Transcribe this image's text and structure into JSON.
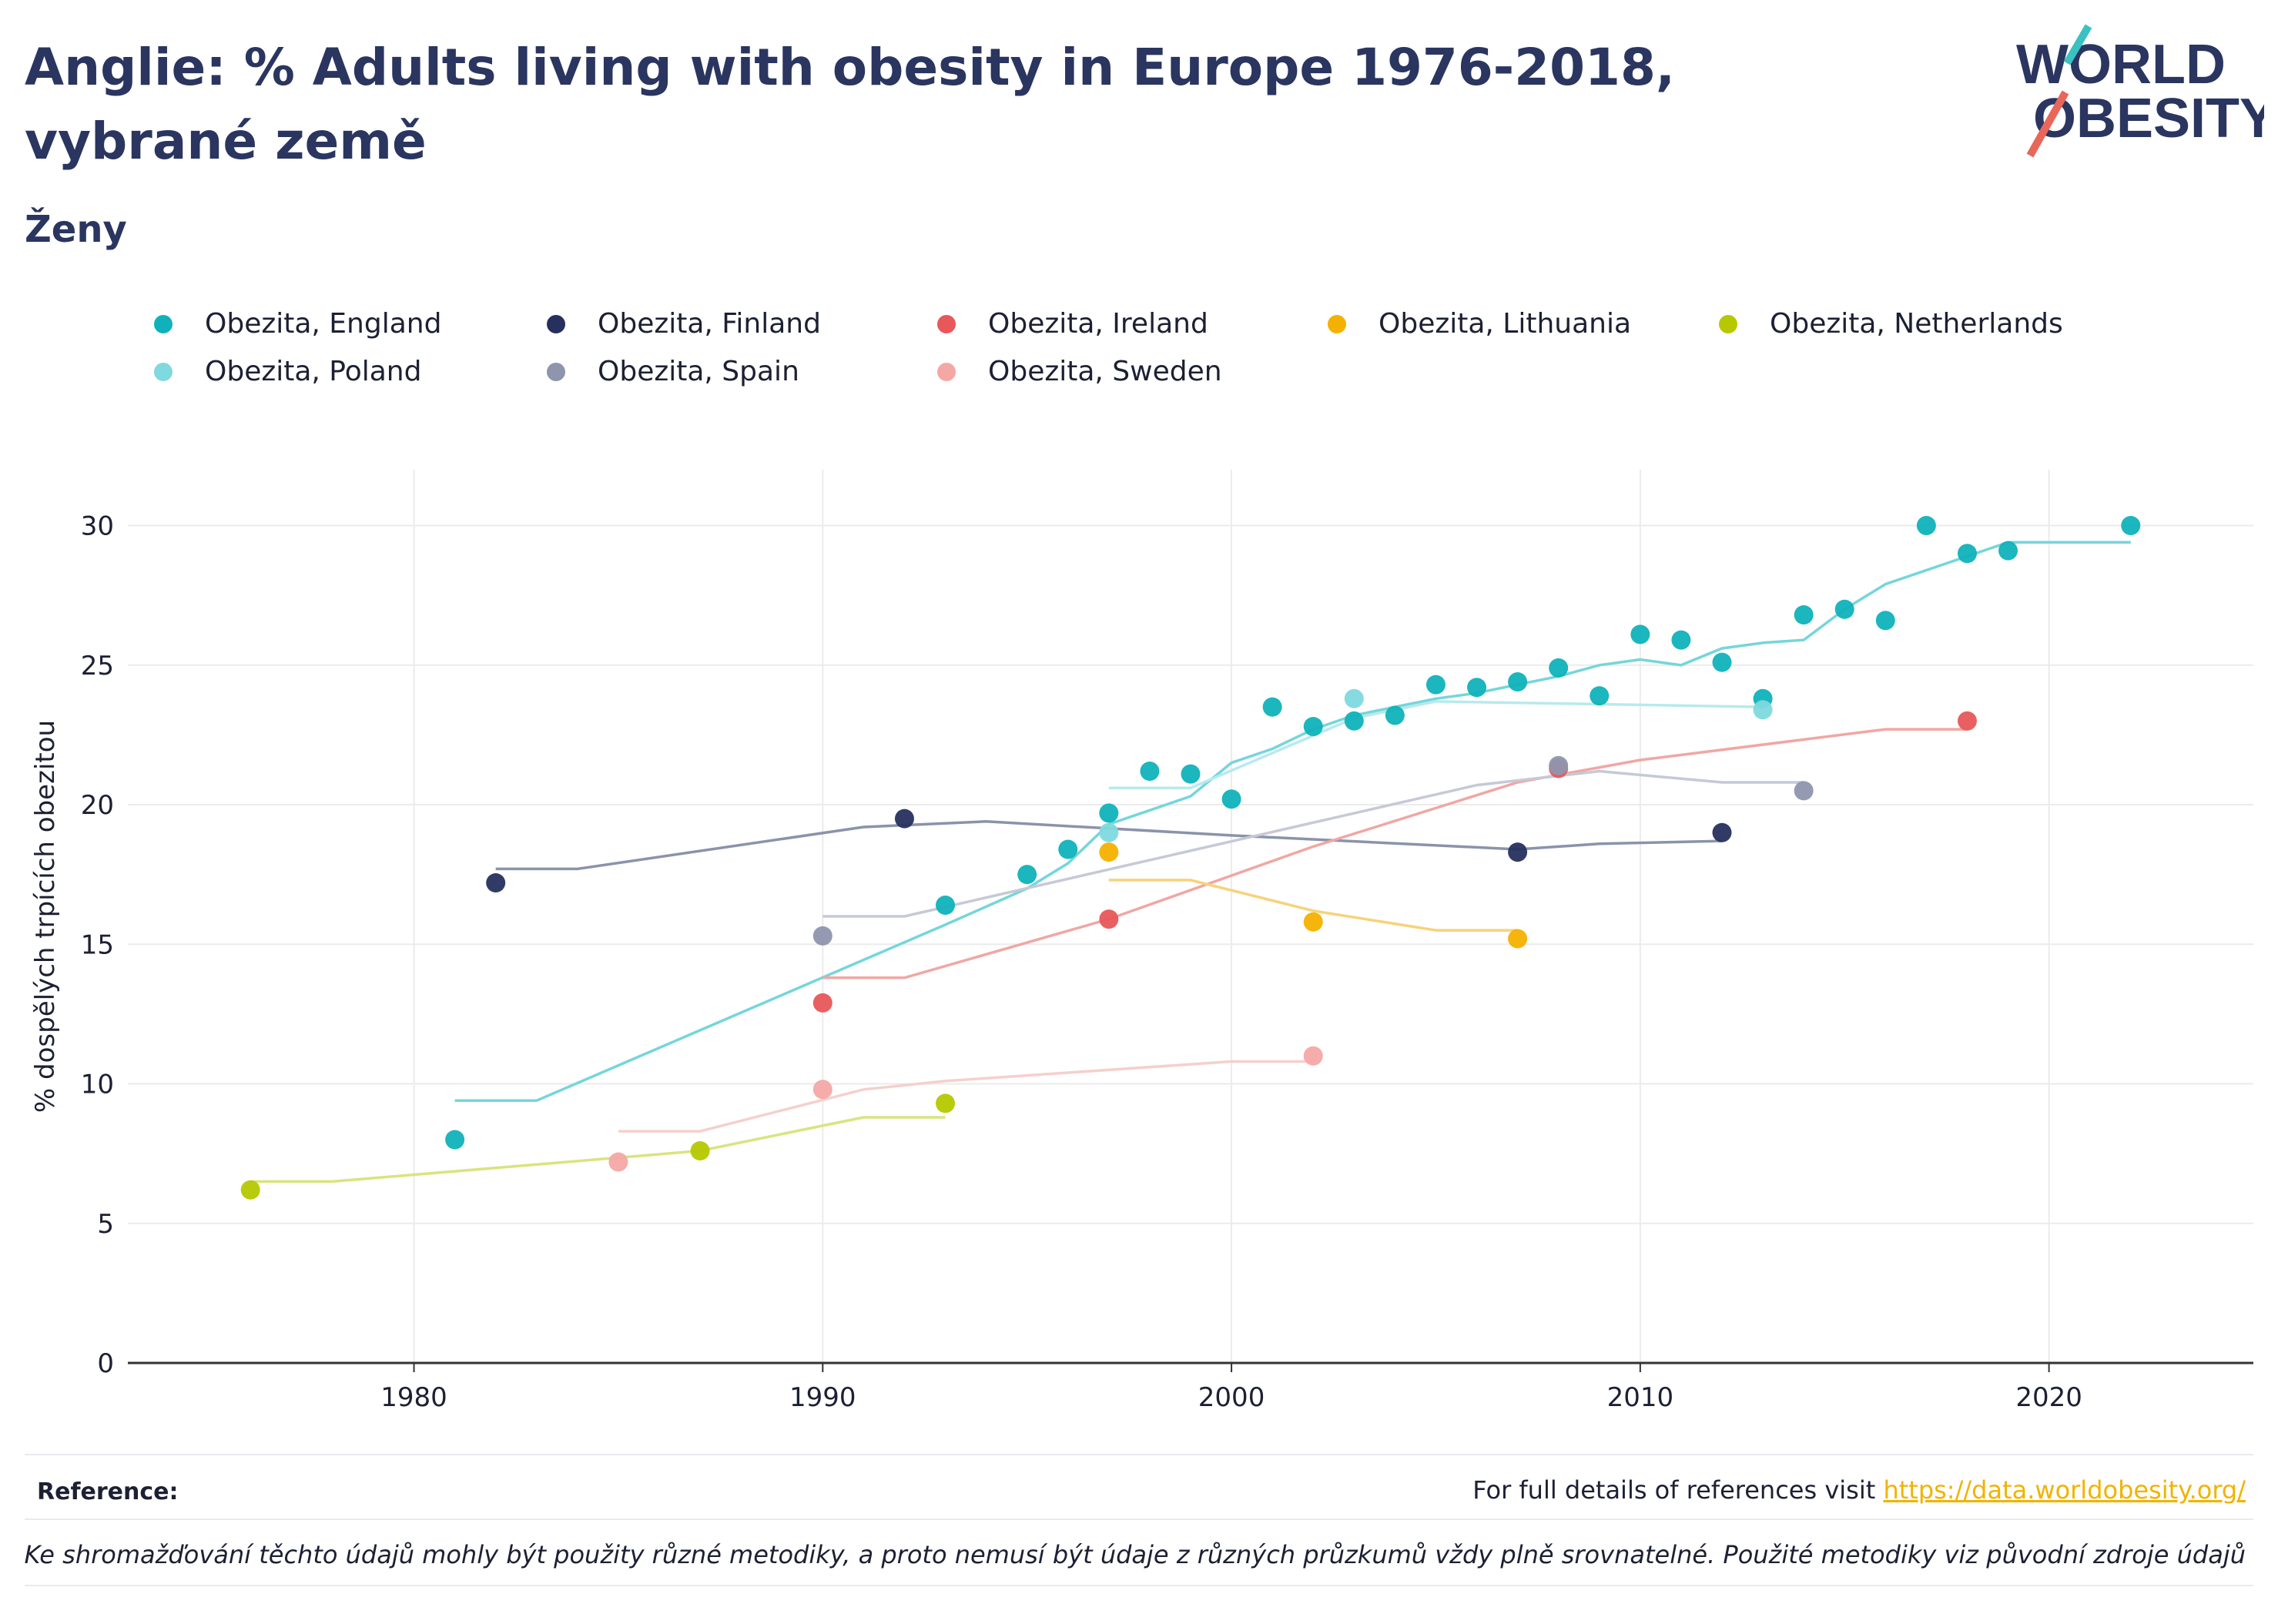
{
  "header": {
    "title": "Anglie: % Adults living with obesity in Europe 1976-2018, vybrané země",
    "subtitle": "Ženy"
  },
  "logo": {
    "line1": "WORLD",
    "line2": "OBESITY",
    "accent_teal": "#3cc1c1",
    "accent_red": "#e8675a"
  },
  "chart_data": {
    "type": "scatter",
    "title": "Anglie: % Adults living with obesity in Europe 1976-2018, vybrané země",
    "subtitle": "Ženy",
    "xlabel": "",
    "ylabel": "% dospělých trpících obezitou",
    "xlim": [
      1973,
      2025
    ],
    "ylim": [
      0,
      32
    ],
    "x_ticks": [
      1980,
      1990,
      2000,
      2010,
      2020
    ],
    "y_ticks": [
      0,
      5,
      10,
      15,
      20,
      25,
      30
    ],
    "grid": true,
    "legend_position": "top",
    "series": [
      {
        "name": "Obezita, England",
        "color": "#0fb2bb",
        "trend_color": "#74d6db",
        "points": [
          [
            1981,
            8.0
          ],
          [
            1993,
            16.4
          ],
          [
            1995,
            17.5
          ],
          [
            1996,
            18.4
          ],
          [
            1997,
            19.7
          ],
          [
            1998,
            21.2
          ],
          [
            1999,
            21.1
          ],
          [
            2000,
            20.2
          ],
          [
            2001,
            23.5
          ],
          [
            2002,
            22.8
          ],
          [
            2003,
            23.0
          ],
          [
            2004,
            23.2
          ],
          [
            2005,
            24.3
          ],
          [
            2006,
            24.2
          ],
          [
            2007,
            24.4
          ],
          [
            2008,
            24.9
          ],
          [
            2009,
            23.9
          ],
          [
            2010,
            26.1
          ],
          [
            2011,
            25.9
          ],
          [
            2012,
            25.1
          ],
          [
            2013,
            23.8
          ],
          [
            2014,
            26.8
          ],
          [
            2015,
            27.0
          ],
          [
            2016,
            26.6
          ],
          [
            2017,
            30.0
          ],
          [
            2018,
            29.0
          ],
          [
            2019,
            29.1
          ],
          [
            2022,
            30.0
          ]
        ],
        "trend": [
          [
            1981,
            9.4
          ],
          [
            1983,
            9.4
          ],
          [
            1993,
            15.7
          ],
          [
            1995,
            17.0
          ],
          [
            1996,
            17.9
          ],
          [
            1997,
            19.3
          ],
          [
            1998,
            19.8
          ],
          [
            1999,
            20.3
          ],
          [
            2000,
            21.5
          ],
          [
            2001,
            22.0
          ],
          [
            2002,
            22.7
          ],
          [
            2003,
            23.2
          ],
          [
            2004,
            23.5
          ],
          [
            2005,
            23.8
          ],
          [
            2006,
            24.0
          ],
          [
            2007,
            24.3
          ],
          [
            2008,
            24.6
          ],
          [
            2009,
            25.0
          ],
          [
            2010,
            25.2
          ],
          [
            2011,
            25.0
          ],
          [
            2012,
            25.6
          ],
          [
            2013,
            25.8
          ],
          [
            2014,
            25.9
          ],
          [
            2015,
            27.0
          ],
          [
            2016,
            27.9
          ],
          [
            2018,
            28.9
          ],
          [
            2019,
            29.4
          ],
          [
            2022,
            29.4
          ]
        ]
      },
      {
        "name": "Obezita, Finland",
        "color": "#26305e",
        "trend_color": "#8a93ab",
        "points": [
          [
            1982,
            17.2
          ],
          [
            1992,
            19.5
          ],
          [
            2007,
            18.3
          ],
          [
            2012,
            19.0
          ]
        ],
        "trend": [
          [
            1982,
            17.7
          ],
          [
            1984,
            17.7
          ],
          [
            1991,
            19.2
          ],
          [
            1994,
            19.4
          ],
          [
            2000,
            18.9
          ],
          [
            2007,
            18.4
          ],
          [
            2009,
            18.6
          ],
          [
            2012,
            18.7
          ]
        ]
      },
      {
        "name": "Obezita, Ireland",
        "color": "#e8575a",
        "trend_color": "#f0a7a3",
        "points": [
          [
            1990,
            12.9
          ],
          [
            1997,
            15.9
          ],
          [
            2008,
            21.3
          ],
          [
            2018,
            23.0
          ]
        ],
        "trend": [
          [
            1990,
            13.8
          ],
          [
            1992,
            13.8
          ],
          [
            1997,
            15.9
          ],
          [
            2002,
            18.5
          ],
          [
            2007,
            20.8
          ],
          [
            2010,
            21.6
          ],
          [
            2016,
            22.7
          ],
          [
            2018,
            22.7
          ]
        ]
      },
      {
        "name": "Obezita, Lithuania",
        "color": "#f5b100",
        "trend_color": "#f6d37a",
        "points": [
          [
            1997,
            18.3
          ],
          [
            2002,
            15.8
          ],
          [
            2007,
            15.2
          ]
        ],
        "trend": [
          [
            1997,
            17.3
          ],
          [
            1999,
            17.3
          ],
          [
            2002,
            16.2
          ],
          [
            2005,
            15.5
          ],
          [
            2007,
            15.5
          ]
        ]
      },
      {
        "name": "Obezita, Netherlands",
        "color": "#b5c800",
        "trend_color": "#d9e47e",
        "points": [
          [
            1976,
            6.2
          ],
          [
            1987,
            7.6
          ],
          [
            1993,
            9.3
          ]
        ],
        "trend": [
          [
            1976,
            6.5
          ],
          [
            1978,
            6.5
          ],
          [
            1987,
            7.6
          ],
          [
            1991,
            8.8
          ],
          [
            1993,
            8.8
          ]
        ]
      },
      {
        "name": "Obezita, Poland",
        "color": "#7fd9de",
        "trend_color": "#b7eaed",
        "points": [
          [
            1997,
            19.0
          ],
          [
            2003,
            23.8
          ],
          [
            2013,
            23.4
          ]
        ],
        "trend": [
          [
            1997,
            20.6
          ],
          [
            1999,
            20.6
          ],
          [
            2003,
            23.1
          ],
          [
            2005,
            23.7
          ],
          [
            2013,
            23.5
          ]
        ]
      },
      {
        "name": "Obezita, Spain",
        "color": "#8e95ad",
        "trend_color": "#c6c9d6",
        "points": [
          [
            1990,
            15.3
          ],
          [
            2008,
            21.4
          ],
          [
            2014,
            20.5
          ]
        ],
        "trend": [
          [
            1990,
            16.0
          ],
          [
            1992,
            16.0
          ],
          [
            2006,
            20.7
          ],
          [
            2009,
            21.2
          ],
          [
            2012,
            20.8
          ],
          [
            2014,
            20.8
          ]
        ]
      },
      {
        "name": "Obezita, Sweden",
        "color": "#f4a8a5",
        "trend_color": "#f5d0cd",
        "points": [
          [
            1985,
            7.2
          ],
          [
            1990,
            9.8
          ],
          [
            2002,
            11.0
          ]
        ],
        "trend": [
          [
            1985,
            8.3
          ],
          [
            1987,
            8.3
          ],
          [
            1991,
            9.8
          ],
          [
            1993,
            10.1
          ],
          [
            2000,
            10.8
          ],
          [
            2002,
            10.8
          ]
        ]
      }
    ]
  },
  "footer": {
    "reference_label": "Reference:",
    "reference_text": "For full details of references visit ",
    "reference_link": "https://data.worldobesity.org/",
    "disclaimer": "Ke shromažďování těchto údajů mohly být použity různé metodiky, a proto nemusí být údaje z různých průzkumů vždy plně srovnatelné. Použité metodiky viz původní zdroje údajů"
  }
}
